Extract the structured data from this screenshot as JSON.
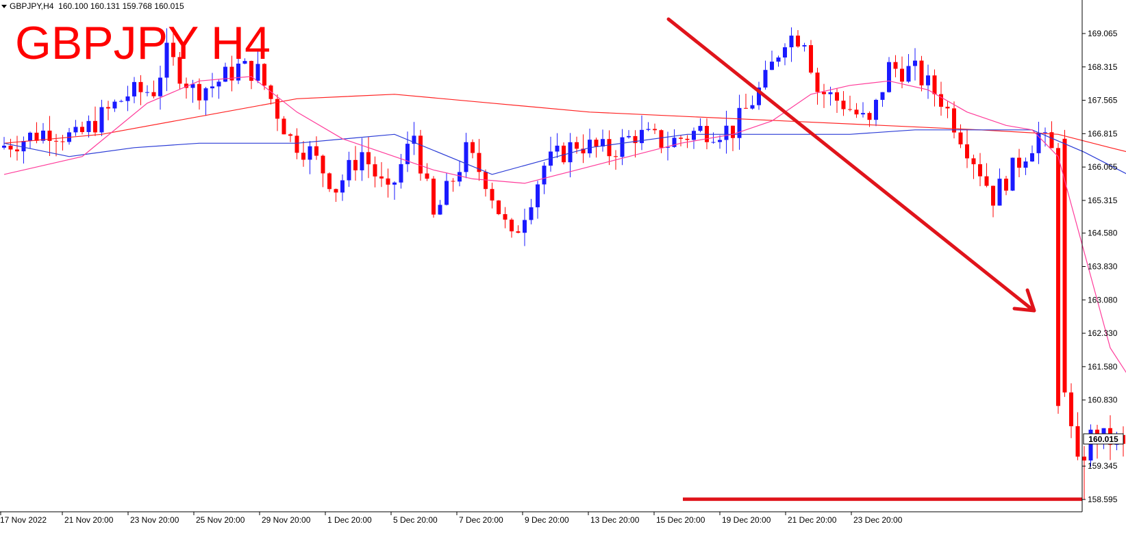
{
  "header": {
    "symbol_info": "GBPJPY,H4  160.100 160.131 159.768 160.015",
    "overlay_title": "GBPJPY H4"
  },
  "colors": {
    "bull": "#1a1aff",
    "bear": "#ff0000",
    "ma_fast": "#ff3b9a",
    "ma_mid": "#2a3bd6",
    "ma_slow": "#ff2020",
    "annotation": "#e0141b",
    "current_price_box": "#ffffff"
  },
  "chart_data": {
    "type": "candlestick",
    "symbol": "GBPJPY",
    "timeframe": "H4",
    "ohlc_current": {
      "open": 160.1,
      "high": 160.131,
      "low": 159.768,
      "close": 160.015
    },
    "ylim": [
      158.35,
      169.7
    ],
    "y_ticks": [
      "169.065",
      "168.315",
      "167.565",
      "166.815",
      "166.065",
      "165.315",
      "164.580",
      "163.830",
      "163.080",
      "162.330",
      "161.580",
      "160.830",
      "159.345",
      "158.595"
    ],
    "x_ticks": [
      "17 Nov 2022",
      "21 Nov 20:00",
      "23 Nov 20:00",
      "25 Nov 20:00",
      "29 Nov 20:00",
      "1 Dec 20:00",
      "5 Dec 20:00",
      "7 Dec 20:00",
      "9 Dec 20:00",
      "13 Dec 20:00",
      "15 Dec 20:00",
      "19 Dec 20:00",
      "21 Dec 20:00",
      "23 Dec 20:00"
    ],
    "current_price": "160.015",
    "support_level": 158.6,
    "grid": false,
    "candle_anchors": [
      [
        0,
        166.5
      ],
      [
        8,
        166.9
      ],
      [
        12,
        166.7
      ],
      [
        20,
        167.7
      ],
      [
        24,
        167.8
      ],
      [
        26,
        168.6
      ],
      [
        30,
        167.8
      ],
      [
        33,
        167.9
      ],
      [
        37,
        168.3
      ],
      [
        40,
        168.2
      ],
      [
        45,
        166.7
      ],
      [
        48,
        166.4
      ],
      [
        52,
        165.6
      ],
      [
        56,
        166.4
      ],
      [
        60,
        165.4
      ],
      [
        64,
        166.8
      ],
      [
        67,
        164.9
      ],
      [
        72,
        166.4
      ],
      [
        75,
        165.8
      ],
      [
        79,
        164.4
      ],
      [
        84,
        166.1
      ],
      [
        89,
        166.6
      ],
      [
        94,
        166.4
      ],
      [
        98,
        166.8
      ],
      [
        103,
        166.6
      ],
      [
        108,
        166.9
      ],
      [
        113,
        166.9
      ],
      [
        118,
        168.0
      ],
      [
        121,
        169.0
      ],
      [
        124,
        169.0
      ],
      [
        126,
        167.8
      ],
      [
        130,
        167.5
      ],
      [
        134,
        167.0
      ],
      [
        137,
        168.3
      ],
      [
        141,
        168.2
      ],
      [
        145,
        167.6
      ],
      [
        148,
        166.8
      ],
      [
        151,
        166.0
      ],
      [
        153,
        165.4
      ],
      [
        157,
        166.2
      ],
      [
        160,
        166.8
      ],
      [
        162,
        166.4
      ],
      [
        163,
        160.9
      ],
      [
        165,
        160.1
      ],
      [
        166,
        159.3
      ],
      [
        168,
        160.0
      ],
      [
        172,
        159.9
      ],
      [
        175,
        159.4
      ],
      [
        178,
        159.9
      ],
      [
        181,
        160.0
      ]
    ],
    "ma_fast": [
      [
        0,
        165.9
      ],
      [
        12,
        166.3
      ],
      [
        22,
        167.5
      ],
      [
        30,
        168.0
      ],
      [
        38,
        168.1
      ],
      [
        45,
        167.3
      ],
      [
        52,
        166.7
      ],
      [
        60,
        166.3
      ],
      [
        66,
        166.0
      ],
      [
        72,
        165.8
      ],
      [
        80,
        165.7
      ],
      [
        88,
        166.0
      ],
      [
        96,
        166.3
      ],
      [
        104,
        166.6
      ],
      [
        112,
        166.8
      ],
      [
        118,
        167.1
      ],
      [
        124,
        167.7
      ],
      [
        130,
        167.9
      ],
      [
        136,
        168.0
      ],
      [
        142,
        167.8
      ],
      [
        148,
        167.3
      ],
      [
        154,
        167.0
      ],
      [
        158,
        166.9
      ],
      [
        162,
        166.3
      ],
      [
        170,
        162.0
      ],
      [
        178,
        160.2
      ],
      [
        181,
        160.1
      ]
    ],
    "ma_mid": [
      [
        0,
        166.6
      ],
      [
        10,
        166.3
      ],
      [
        20,
        166.5
      ],
      [
        30,
        166.6
      ],
      [
        45,
        166.6
      ],
      [
        60,
        166.8
      ],
      [
        75,
        165.9
      ],
      [
        90,
        166.5
      ],
      [
        105,
        166.8
      ],
      [
        118,
        166.8
      ],
      [
        130,
        166.8
      ],
      [
        140,
        166.9
      ],
      [
        150,
        166.9
      ],
      [
        158,
        166.9
      ],
      [
        166,
        166.4
      ],
      [
        174,
        165.8
      ],
      [
        181,
        165.1
      ]
    ],
    "ma_slow": [
      [
        0,
        166.6
      ],
      [
        15,
        166.8
      ],
      [
        30,
        167.2
      ],
      [
        45,
        167.6
      ],
      [
        60,
        167.7
      ],
      [
        75,
        167.5
      ],
      [
        90,
        167.3
      ],
      [
        105,
        167.2
      ],
      [
        120,
        167.1
      ],
      [
        135,
        167.0
      ],
      [
        150,
        166.9
      ],
      [
        162,
        166.8
      ],
      [
        170,
        166.5
      ],
      [
        181,
        166.1
      ]
    ]
  }
}
